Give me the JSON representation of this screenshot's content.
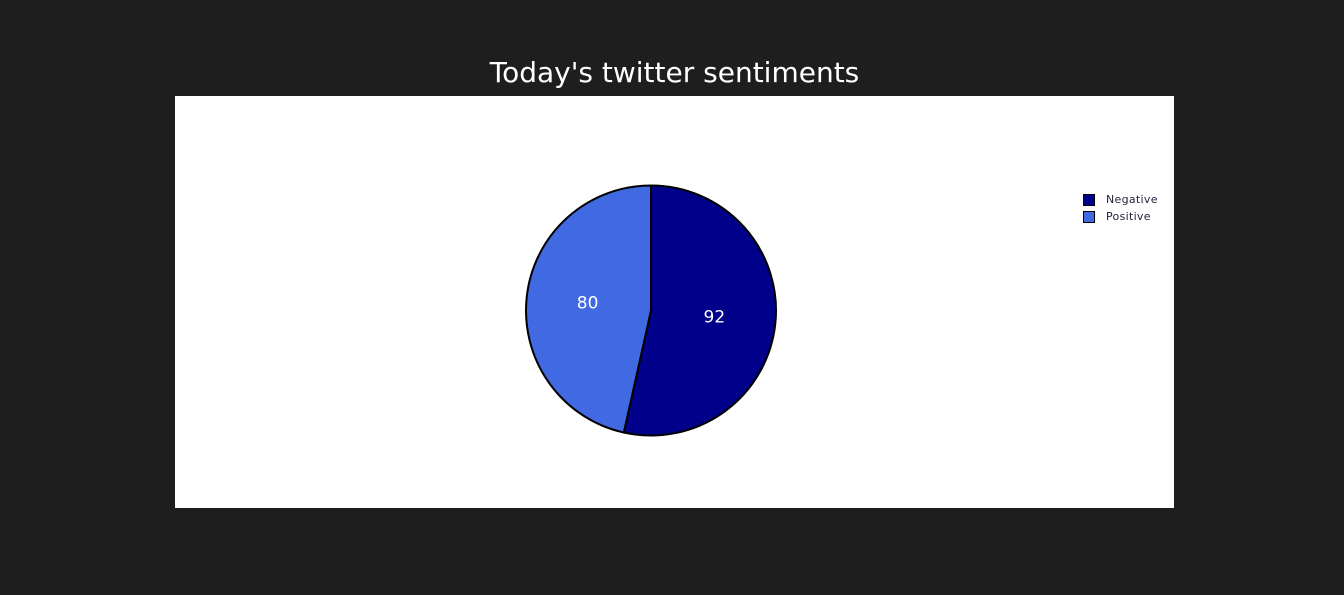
{
  "chart_data": {
    "type": "pie",
    "title": "Today's twitter sentiments",
    "slices": [
      {
        "label": "Negative",
        "value": 92,
        "color": "#00008b"
      },
      {
        "label": "Positive",
        "value": 80,
        "color": "#4169e1"
      }
    ],
    "legend": {
      "placement": "top-right",
      "entries": [
        "Negative",
        "Positive"
      ]
    }
  },
  "colors": {
    "page_background": "#1f1e1f",
    "panel_background": "#ffffff",
    "title_text": "#ffffff",
    "slice_label_text": "#ffffff"
  }
}
